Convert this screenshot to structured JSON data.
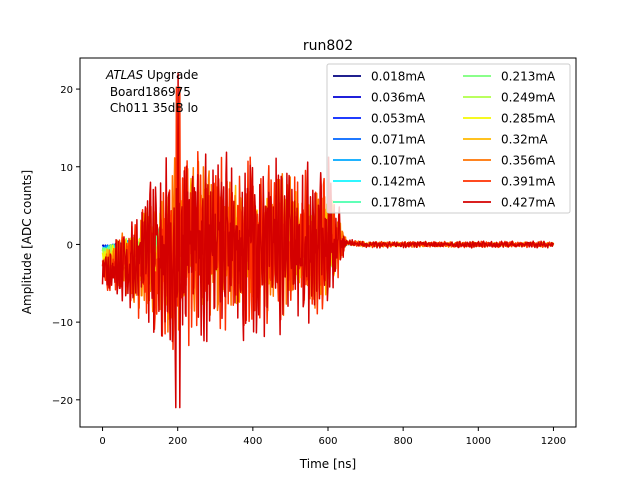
{
  "chart_data": {
    "type": "line",
    "title": "run802",
    "xlabel": "Time [ns]",
    "ylabel": "Amplitude [ADC counts]",
    "xlim": [
      -60,
      1260
    ],
    "ylim": [
      -23.5,
      24
    ],
    "xticks": [
      0,
      200,
      400,
      600,
      800,
      1000,
      1200
    ],
    "yticks": [
      -20,
      -10,
      0,
      10,
      20
    ],
    "ytick_labels": [
      "−20",
      "−10",
      "0",
      "10",
      "20"
    ],
    "grid": false,
    "legend_position": "upper right",
    "legend_columns": 2,
    "annotation": {
      "italic": "ATLAS",
      "rest": " Upgrade",
      "line2": " Board186975",
      "line3": " Ch011 35dB lo"
    },
    "series": [
      {
        "name": "0.018mA",
        "color": "#00007f",
        "amp": 0.06
      },
      {
        "name": "0.036mA",
        "color": "#0000d4",
        "amp": 0.08
      },
      {
        "name": "0.053mA",
        "color": "#0020ff",
        "amp": 0.1
      },
      {
        "name": "0.071mA",
        "color": "#0064ff",
        "amp": 0.12
      },
      {
        "name": "0.107mA",
        "color": "#00a8ff",
        "amp": 0.15
      },
      {
        "name": "0.142mA",
        "color": "#13f4ff",
        "amp": 0.2
      },
      {
        "name": "0.178mA",
        "color": "#4affad",
        "amp": 0.25
      },
      {
        "name": "0.213mA",
        "color": "#7aff7a",
        "amp": 0.3
      },
      {
        "name": "0.249mA",
        "color": "#b0ff47",
        "amp": 0.35
      },
      {
        "name": "0.285mA",
        "color": "#f4f802",
        "amp": 0.45
      },
      {
        "name": "0.32mA",
        "color": "#ffb900",
        "amp": 0.65
      },
      {
        "name": "0.356mA",
        "color": "#ff7300",
        "amp": 0.8
      },
      {
        "name": "0.391mA",
        "color": "#ff3000",
        "amp": 0.92
      },
      {
        "name": "0.427mA",
        "color": "#d40000",
        "amp": 1.0
      }
    ]
  }
}
